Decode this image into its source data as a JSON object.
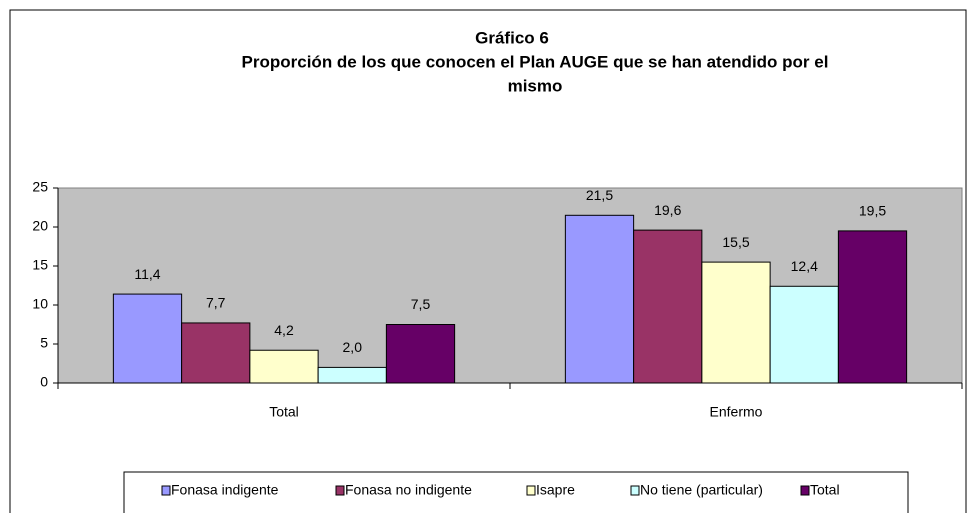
{
  "chart_data": {
    "type": "bar",
    "title": "Gráfico 6",
    "subtitle": [
      "Proporción de los que conocen el Plan AUGE que se han atendido por el",
      "mismo"
    ],
    "categories": [
      "Total",
      "Enfermo"
    ],
    "series": [
      {
        "name": "Fonasa indigente",
        "color": "#9999ff",
        "values": [
          11.4,
          21.5
        ],
        "value_labels": [
          "11,4",
          "21,5"
        ]
      },
      {
        "name": "Fonasa no indigente",
        "color": "#993366",
        "values": [
          7.7,
          19.6
        ],
        "value_labels": [
          "7,7",
          "19,6"
        ]
      },
      {
        "name": "Isapre",
        "color": "#ffffcc",
        "values": [
          4.2,
          15.5
        ],
        "value_labels": [
          "4,2",
          "15,5"
        ]
      },
      {
        "name": "No tiene (particular)",
        "color": "#ccffff",
        "values": [
          2.0,
          12.4
        ],
        "value_labels": [
          "2,0",
          "12,4"
        ]
      },
      {
        "name": "Total",
        "color": "#660066",
        "values": [
          7.5,
          19.5
        ],
        "value_labels": [
          "7,5",
          "19,5"
        ]
      }
    ],
    "ylim": [
      0,
      25
    ],
    "yticks": [
      0,
      5,
      10,
      15,
      20,
      25
    ],
    "grid": false,
    "legend": "bottom",
    "plot_background": "#c0c0c0"
  }
}
